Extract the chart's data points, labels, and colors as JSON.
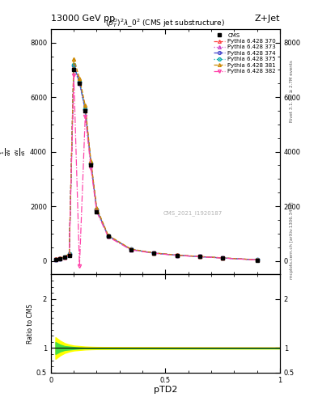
{
  "title_top": "13000 GeV pp",
  "title_right": "Z+Jet",
  "subtitle": "$(p_T^D)^2\\lambda\\_0^2$ (CMS jet substructure)",
  "xlabel": "pTD2",
  "watermark": "CMS_2021_I1920187",
  "rivet_text": "Rivet 3.1.10, ≥ 2.7M events",
  "arxiv_text": "mcplots.cern.ch [arXiv:1306.3436]",
  "xlim": [
    0,
    1.0
  ],
  "ylim_main": [
    -500,
    8500
  ],
  "ylim_ratio": [
    0.5,
    2.5
  ],
  "cms_x": [
    0.02,
    0.04,
    0.06,
    0.08,
    0.1,
    0.125,
    0.15,
    0.175,
    0.2,
    0.25,
    0.35,
    0.45,
    0.55,
    0.65,
    0.75,
    0.9
  ],
  "cms_y": [
    50,
    80,
    120,
    200,
    7000,
    6500,
    5500,
    3500,
    1800,
    900,
    400,
    280,
    200,
    150,
    100,
    30
  ],
  "series": [
    {
      "label": "Pythia 6.428 370",
      "color": "#ff4444",
      "marker": "^",
      "linestyle": "--",
      "x": [
        0.02,
        0.04,
        0.06,
        0.08,
        0.1,
        0.125,
        0.15,
        0.175,
        0.2,
        0.25,
        0.35,
        0.45,
        0.55,
        0.65,
        0.75,
        0.9
      ],
      "y": [
        60,
        90,
        130,
        250,
        7200,
        6600,
        5600,
        3600,
        1900,
        920,
        420,
        285,
        205,
        155,
        105,
        35
      ]
    },
    {
      "label": "Pythia 6.428 373",
      "color": "#cc44cc",
      "marker": "^",
      "linestyle": ":",
      "x": [
        0.02,
        0.04,
        0.06,
        0.08,
        0.1,
        0.125,
        0.15,
        0.175,
        0.2,
        0.25,
        0.35,
        0.45,
        0.55,
        0.65,
        0.75,
        0.9
      ],
      "y": [
        55,
        85,
        125,
        240,
        7100,
        6500,
        5500,
        3550,
        1870,
        910,
        415,
        282,
        203,
        153,
        103,
        33
      ]
    },
    {
      "label": "Pythia 6.428 374",
      "color": "#4444cc",
      "marker": "o",
      "linestyle": "--",
      "x": [
        0.02,
        0.04,
        0.06,
        0.08,
        0.1,
        0.125,
        0.15,
        0.175,
        0.2,
        0.25,
        0.35,
        0.45,
        0.55,
        0.65,
        0.75,
        0.9
      ],
      "y": [
        57,
        87,
        127,
        245,
        7150,
        6550,
        5550,
        3570,
        1880,
        915,
        417,
        283,
        204,
        154,
        104,
        34
      ]
    },
    {
      "label": "Pythia 6.428 375",
      "color": "#00aaaa",
      "marker": "o",
      "linestyle": ":",
      "x": [
        0.02,
        0.04,
        0.06,
        0.08,
        0.1,
        0.125,
        0.15,
        0.175,
        0.2,
        0.25,
        0.35,
        0.45,
        0.55,
        0.65,
        0.75,
        0.9
      ],
      "y": [
        58,
        88,
        128,
        247,
        7180,
        6560,
        5560,
        3575,
        1885,
        917,
        418,
        284,
        204,
        154,
        104,
        34
      ]
    },
    {
      "label": "Pythia 6.428 381",
      "color": "#cc8800",
      "marker": "^",
      "linestyle": "--",
      "x": [
        0.02,
        0.04,
        0.06,
        0.08,
        0.1,
        0.125,
        0.15,
        0.175,
        0.2,
        0.25,
        0.35,
        0.45,
        0.55,
        0.65,
        0.75,
        0.9
      ],
      "y": [
        65,
        95,
        140,
        260,
        7400,
        6700,
        5700,
        3650,
        1950,
        940,
        430,
        292,
        210,
        160,
        108,
        38
      ]
    },
    {
      "label": "Pythia 6.428 382",
      "color": "#ff44aa",
      "marker": "v",
      "linestyle": "-.",
      "x": [
        0.02,
        0.04,
        0.06,
        0.08,
        0.1,
        0.125,
        0.15,
        0.175,
        0.2,
        0.25,
        0.35,
        0.45,
        0.55,
        0.65,
        0.75,
        0.9
      ],
      "y": [
        45,
        70,
        110,
        200,
        6800,
        -200,
        5300,
        3400,
        1800,
        880,
        400,
        275,
        198,
        150,
        100,
        30
      ]
    }
  ],
  "ratio_x": [
    0.02,
    0.04,
    0.06,
    0.08,
    0.1,
    0.125,
    0.15,
    0.175,
    0.2,
    0.25,
    0.35,
    0.45,
    0.55,
    0.65,
    0.75,
    0.9,
    1.0
  ],
  "ratio_green_lo": [
    0.88,
    0.93,
    0.96,
    0.97,
    0.98,
    0.99,
    0.995,
    0.997,
    0.998,
    0.999,
    0.999,
    0.999,
    0.999,
    0.999,
    0.999,
    0.999,
    0.999
  ],
  "ratio_green_hi": [
    1.12,
    1.07,
    1.04,
    1.03,
    1.02,
    1.01,
    1.005,
    1.003,
    1.002,
    1.001,
    1.001,
    1.001,
    1.001,
    1.001,
    1.001,
    1.001,
    1.001
  ],
  "ratio_yellow_lo": [
    0.78,
    0.85,
    0.9,
    0.93,
    0.95,
    0.96,
    0.97,
    0.975,
    0.978,
    0.98,
    0.982,
    0.983,
    0.984,
    0.985,
    0.986,
    0.987,
    0.988
  ],
  "ratio_yellow_hi": [
    1.22,
    1.15,
    1.1,
    1.07,
    1.05,
    1.04,
    1.03,
    1.025,
    1.022,
    1.02,
    1.018,
    1.017,
    1.016,
    1.015,
    1.014,
    1.013,
    1.012
  ],
  "bg_color": "#ffffff"
}
